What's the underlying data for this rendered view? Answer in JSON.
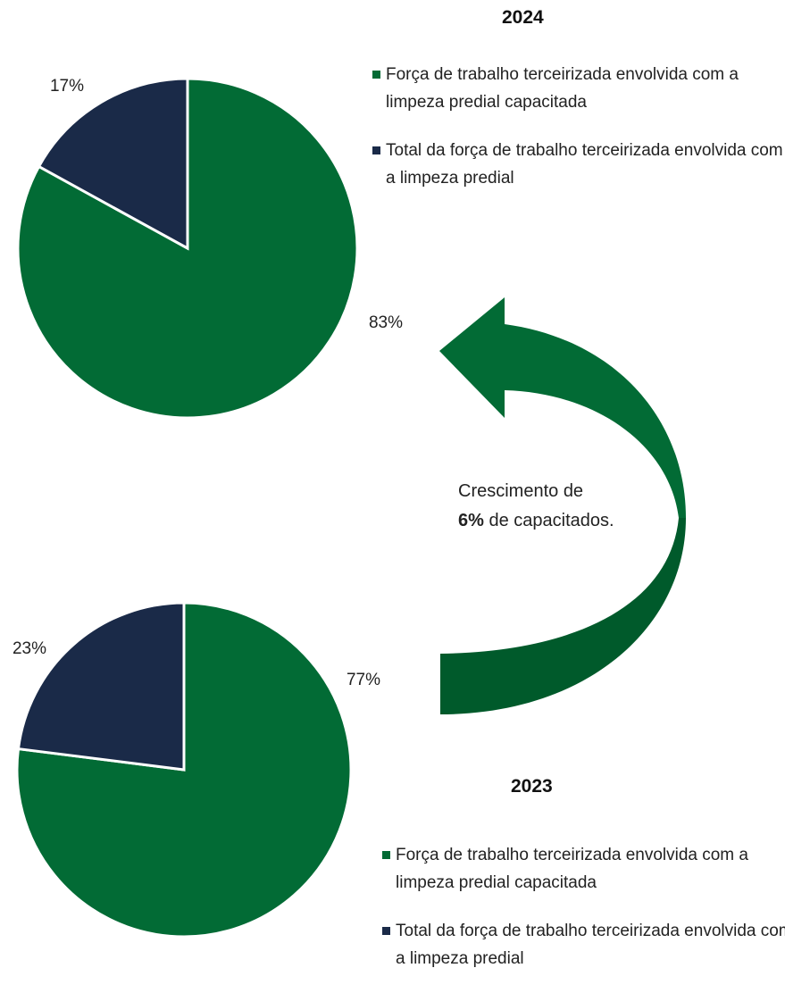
{
  "chart_data": [
    {
      "type": "pie",
      "title": "2024",
      "categories": [
        "Força de trabalho terceirizada envolvida com a limpeza predial capacitada",
        "Total da força de trabalho terceirizada envolvida com a limpeza predial"
      ],
      "values": [
        83,
        17
      ],
      "value_labels": [
        "83%",
        "17%"
      ],
      "colors": [
        "#026b35",
        "#1a2a48"
      ]
    },
    {
      "type": "pie",
      "title": "2023",
      "categories": [
        "Força de trabalho terceirizada envolvida com a limpeza predial capacitada",
        "Total da força de trabalho terceirizada envolvida com a limpeza predial"
      ],
      "values": [
        77,
        23
      ],
      "value_labels": [
        "77%",
        "23%"
      ],
      "colors": [
        "#026b35",
        "#1a2a48"
      ]
    }
  ],
  "annotation": {
    "line1": "Crescimento de",
    "bold": "6%",
    "rest": "de capacitados."
  }
}
